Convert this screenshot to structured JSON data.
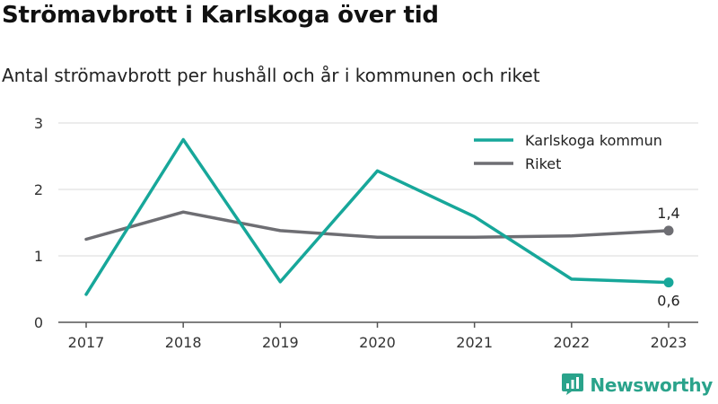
{
  "header": {
    "title": "Strömavbrott i Karlskoga över tid",
    "subtitle": "Antal strömavbrott per hushåll och år i kommunen och riket"
  },
  "brand": {
    "name": "Newsworthy",
    "icon": "newsworthy-logo-icon",
    "color": "#2aa38b"
  },
  "chart_data": {
    "type": "line",
    "title": "Strömavbrott i Karlskoga över tid",
    "subtitle": "Antal strömavbrott per hushåll och år i kommunen och riket",
    "xlabel": "",
    "ylabel": "",
    "x": [
      "2017",
      "2018",
      "2019",
      "2020",
      "2021",
      "2022",
      "2023"
    ],
    "ylim": [
      0,
      3
    ],
    "yticks": [
      "0",
      "1",
      "2",
      "3"
    ],
    "grid": true,
    "legend_position": "top-right",
    "series": [
      {
        "name": "Karlskoga kommun",
        "color": "#17a79a",
        "values": [
          0.42,
          2.75,
          0.61,
          2.28,
          1.59,
          0.65,
          0.6
        ],
        "end_label": "0,6"
      },
      {
        "name": "Riket",
        "color": "#6e6e73",
        "values": [
          1.25,
          1.66,
          1.38,
          1.28,
          1.28,
          1.3,
          1.38
        ],
        "end_label": "1,4"
      }
    ]
  }
}
